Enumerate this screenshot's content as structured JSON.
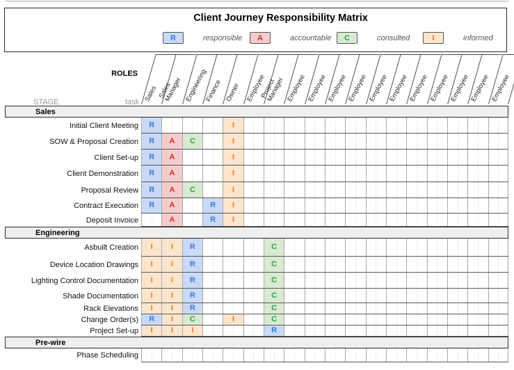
{
  "title": "Client Journey Responsibility Matrix",
  "legend": [
    {
      "letter": "R",
      "label": "responsible",
      "bg": "#c9daf8",
      "fg": "#3c78d8"
    },
    {
      "letter": "A",
      "label": "accountable",
      "bg": "#f4cccc",
      "fg": "#dd2b2b"
    },
    {
      "letter": "C",
      "label": "consulted",
      "bg": "#d9ead3",
      "fg": "#2f9e44"
    },
    {
      "letter": "I",
      "label": "informed",
      "bg": "#fce5cd",
      "fg": "#f0781e"
    }
  ],
  "axis": {
    "roles_label": "ROLES",
    "stage_label": "STAGE",
    "task_label": "task"
  },
  "columns": [
    "Sales",
    "Sales Manager",
    "Engineering",
    "Finance",
    "Owner",
    "Employee",
    "Project Manager",
    "Employee",
    "Employee",
    "Employee",
    "Employee",
    "Employee",
    "Employee",
    "Employee",
    "Employee",
    "Employee",
    "Employee",
    "Employee"
  ],
  "sections": [
    {
      "name": "Sales",
      "tasks": [
        {
          "label": "Initial Client Meeting",
          "marks": {
            "1": "R",
            "5": "I"
          }
        },
        {
          "label": "SOW & Proposal Creation",
          "marks": {
            "1": "R",
            "2": "A",
            "3": "C",
            "5": "I"
          }
        },
        {
          "label": "Client Set-up",
          "marks": {
            "1": "R",
            "2": "A",
            "5": "I"
          }
        },
        {
          "label": "Client Demonstration",
          "marks": {
            "1": "R",
            "2": "A",
            "5": "I"
          }
        },
        {
          "label": "Proposal Review",
          "marks": {
            "1": "R",
            "2": "A",
            "3": "C",
            "5": "I"
          }
        },
        {
          "label": "Contract Execution",
          "marks": {
            "1": "R",
            "2": "A",
            "4": "R",
            "5": "I"
          }
        },
        {
          "label": "Deposit Invoice",
          "marks": {
            "2": "A",
            "4": "R",
            "5": "I"
          }
        }
      ]
    },
    {
      "name": "Engineering",
      "tasks": [
        {
          "label": "Asbuilt Creation",
          "marks": {
            "1": "I",
            "2": "I",
            "3": "R",
            "7": "C"
          }
        },
        {
          "label": "Device Location Drawings",
          "marks": {
            "1": "I",
            "2": "I",
            "3": "R",
            "7": "C"
          }
        },
        {
          "label": "Lighting Control Documentation",
          "marks": {
            "1": "I",
            "2": "I",
            "3": "R",
            "7": "C"
          }
        },
        {
          "label": "Shade Documentation",
          "marks": {
            "1": "I",
            "2": "I",
            "3": "R",
            "7": "C"
          }
        },
        {
          "label": "Rack Elevations",
          "marks": {
            "1": "I",
            "2": "I",
            "3": "R",
            "7": "C"
          }
        },
        {
          "label": "Change Order(s)",
          "marks": {
            "1": "R",
            "2": "I",
            "3": "C",
            "5": "I",
            "7": "C"
          }
        },
        {
          "label": "Project Set-up",
          "marks": {
            "1": "I",
            "2": "I",
            "3": "I",
            "7": "R"
          }
        }
      ]
    },
    {
      "name": "Pre-wire",
      "tasks": [
        {
          "label": "Phase Scheduling",
          "marks": {}
        }
      ]
    }
  ]
}
